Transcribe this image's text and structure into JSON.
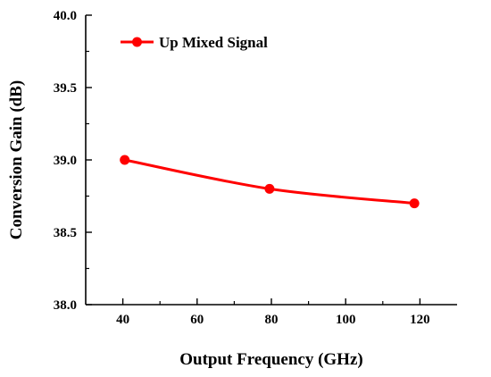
{
  "chart_data": {
    "type": "line",
    "title": "",
    "xlabel": "Output Frequency (GHz)",
    "ylabel": "Conversion Gain (dB)",
    "xlim": [
      30,
      130
    ],
    "ylim": [
      38.0,
      40.0
    ],
    "x_ticks": [
      "40",
      "60",
      "80",
      "100",
      "120"
    ],
    "y_ticks": [
      "38.0",
      "38.5",
      "39.0",
      "39.5",
      "40.0"
    ],
    "grid": false,
    "legend_position": "top-left",
    "series": [
      {
        "name": "Up Mixed Signal",
        "color": "#ff0000",
        "marker": "circle",
        "x": [
          40.5,
          79.5,
          118.5
        ],
        "y": [
          39.0,
          38.8,
          38.7
        ]
      }
    ]
  }
}
